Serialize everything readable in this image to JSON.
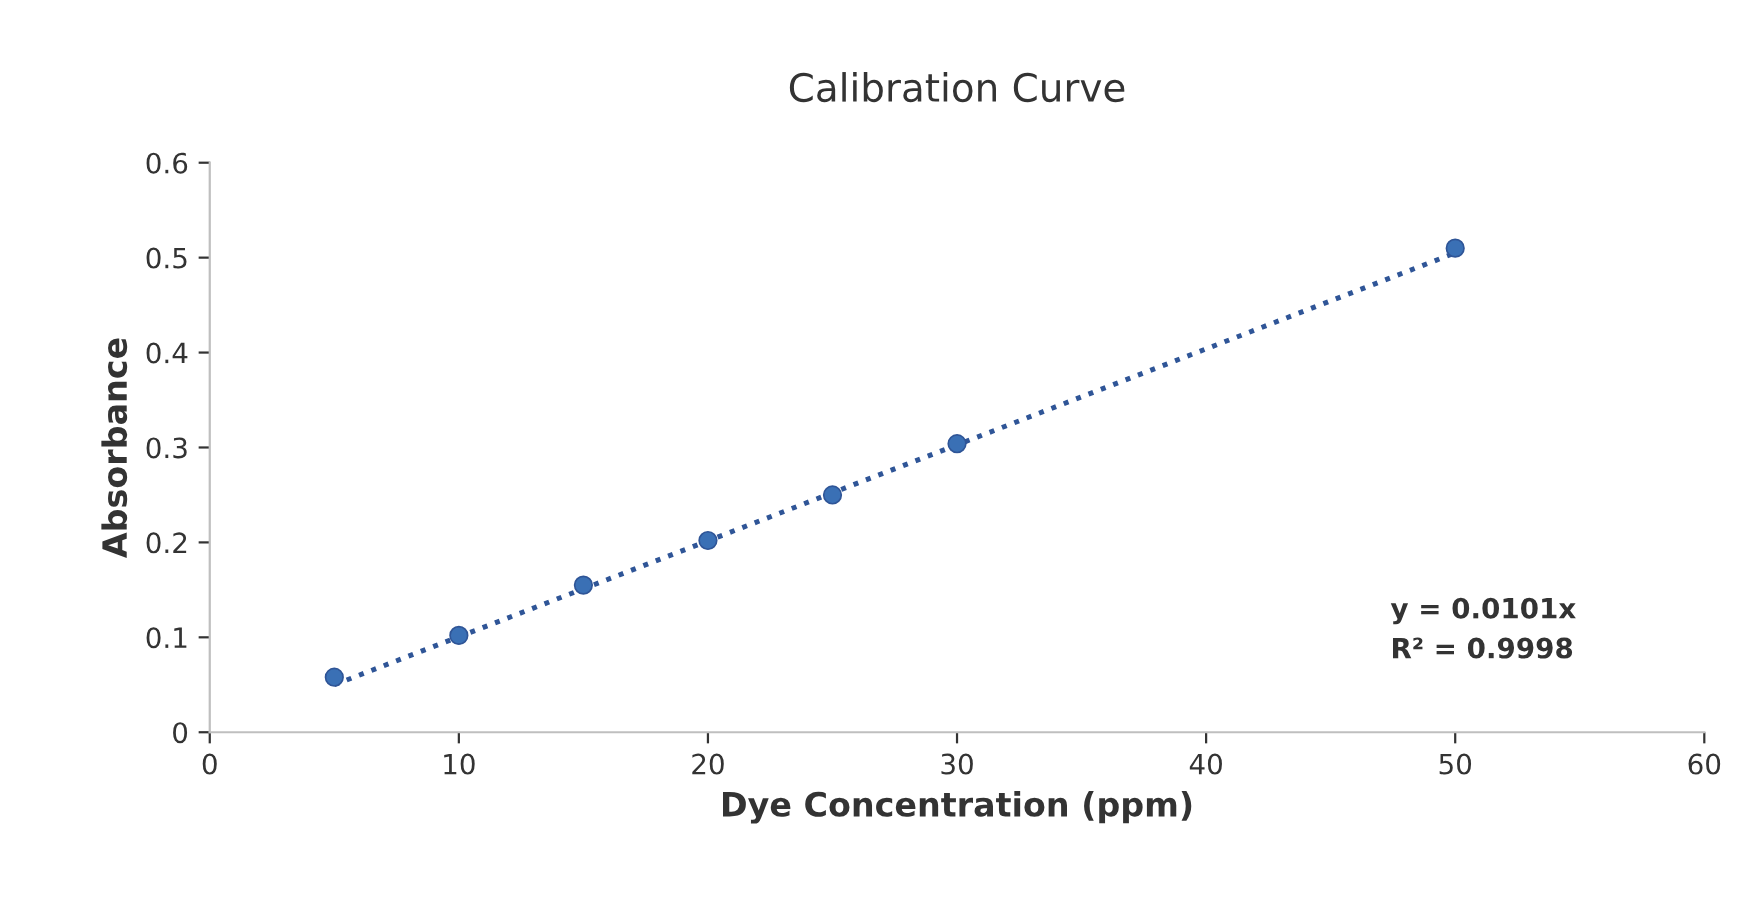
{
  "chart_data": {
    "type": "scatter",
    "title": "Calibration Curve",
    "xlabel": "Dye Concentration (ppm)",
    "ylabel": "Absorbance",
    "xlim": [
      0,
      60
    ],
    "xticks": [
      0,
      10,
      20,
      30,
      40,
      50,
      60
    ],
    "ylim": [
      0,
      0.6
    ],
    "yticks": [
      0,
      0.1,
      0.2,
      0.3,
      0.4,
      0.5,
      0.6
    ],
    "grid": false,
    "marker": "circle",
    "series": [
      {
        "color": "#3a70b5",
        "x": [
          5,
          10,
          15,
          20,
          25,
          30,
          50
        ],
        "values": [
          0.058,
          0.102,
          0.155,
          0.202,
          0.25,
          0.304,
          0.51
        ]
      },
      {
        "type": "line",
        "color": "#2f5597",
        "line_style": "dotted",
        "marker": "none",
        "x": [
          5,
          50
        ],
        "values": [
          0.05,
          0.505
        ]
      }
    ],
    "annotations": [
      "y = 0.0101x",
      "R² = 0.9998"
    ]
  }
}
